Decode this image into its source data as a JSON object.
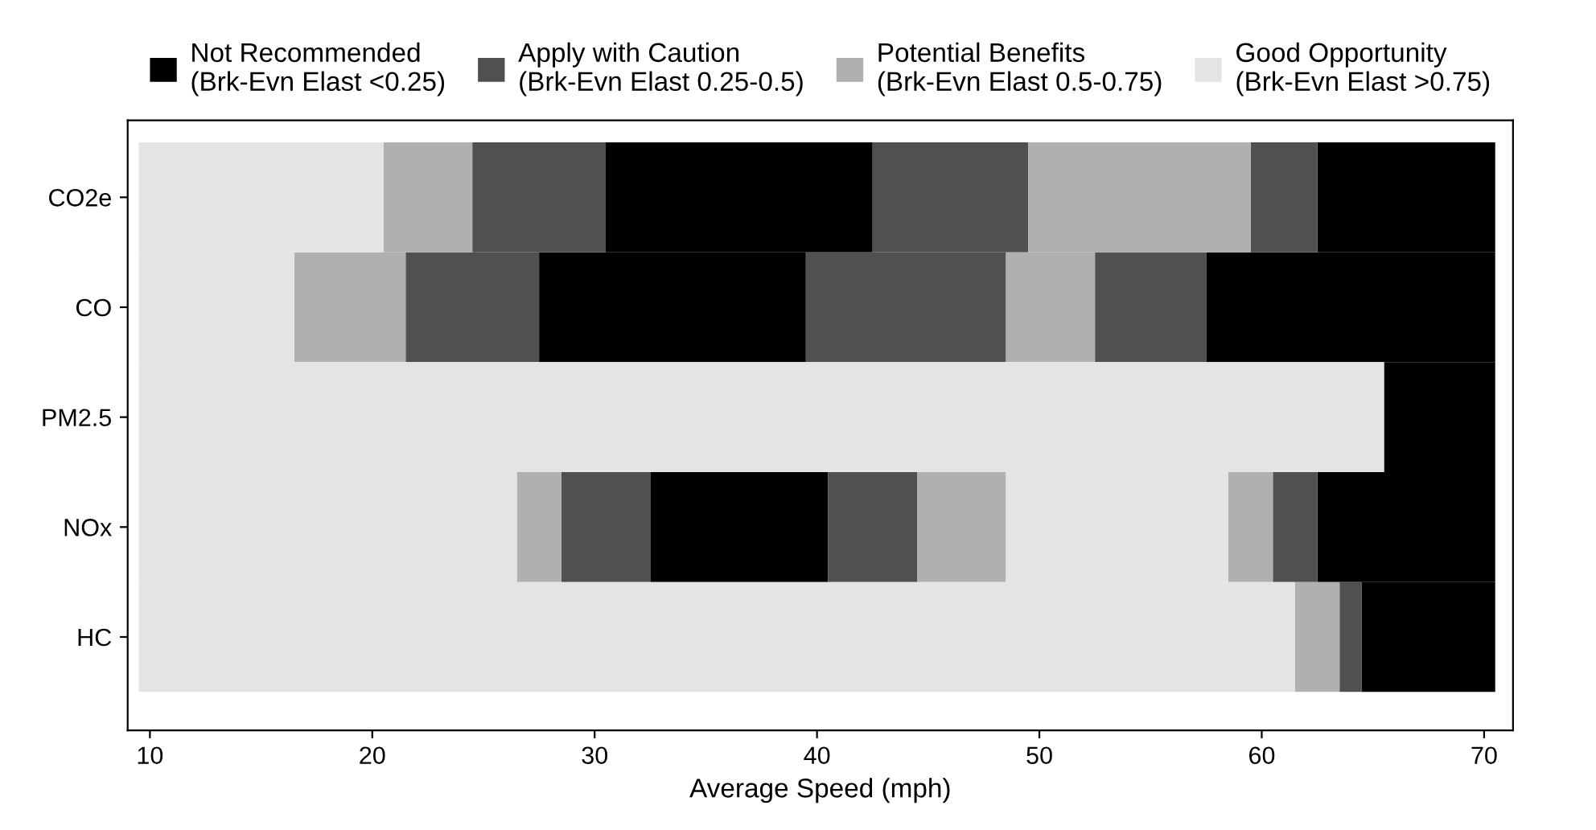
{
  "chart_data": {
    "type": "bar",
    "orientation": "horizontal",
    "xlabel": "Average Speed (mph)",
    "categories": [
      "CO2e",
      "CO",
      "PM2.5",
      "NOx",
      "HC"
    ],
    "xlim": [
      9,
      71.3
    ],
    "xticks": [
      10,
      20,
      30,
      40,
      50,
      60,
      70
    ],
    "grid": false,
    "legend": "top",
    "series": [
      {
        "name": "Not Recommended\n(Brk-Evn Elast <0.25)",
        "color": "#000000",
        "base": [
          30.5,
          27.5,
          65.5,
          32.5,
          64.5
        ],
        "values": [
          12,
          12,
          5,
          8,
          6
        ]
      },
      {
        "color": "#000000",
        "base": [
          62.5,
          57.5,
          null,
          62.5,
          null
        ],
        "values": [
          8,
          13,
          null,
          8,
          null
        ]
      },
      {
        "name": "Apply with Caution\n(Brk-Evn Elast 0.25-0.5)",
        "color": "#505050",
        "base": [
          24.5,
          21.5,
          null,
          28.5,
          63.5
        ],
        "values": [
          6,
          6,
          null,
          4,
          1
        ]
      },
      {
        "color": "#505050",
        "base": [
          42.5,
          39.5,
          null,
          40.5,
          null
        ],
        "values": [
          7,
          9,
          null,
          4,
          null
        ]
      },
      {
        "color": "#505050",
        "base": [
          59.5,
          52.5,
          null,
          60.5,
          null
        ],
        "values": [
          3,
          5,
          null,
          2,
          null
        ]
      },
      {
        "name": "Potential Benefits\n(Brk-Evn Elast 0.5-0.75)",
        "color": "#b0b0b0",
        "base": [
          20.5,
          16.5,
          null,
          26.5,
          61.5
        ],
        "values": [
          4,
          5,
          null,
          2,
          2
        ]
      },
      {
        "color": "#b0b0b0",
        "base": [
          49.5,
          48.5,
          null,
          44.5,
          null
        ],
        "values": [
          10,
          4,
          null,
          4,
          null
        ]
      },
      {
        "color": "#b0b0b0",
        "base": [
          null,
          null,
          null,
          58.5,
          null
        ],
        "values": [
          null,
          null,
          null,
          2,
          null
        ]
      },
      {
        "name": "Good Opportunity\n(Brk-Evn Elast >0.75)",
        "color": "#e4e4e4",
        "base": [
          9.5,
          9.5,
          9.5,
          9.5,
          9.5
        ],
        "values": [
          11,
          7,
          56,
          17,
          52
        ]
      },
      {
        "color": "#e4e4e4",
        "base": [
          null,
          null,
          null,
          48.5,
          null
        ],
        "values": [
          null,
          null,
          null,
          10,
          null
        ]
      }
    ]
  }
}
